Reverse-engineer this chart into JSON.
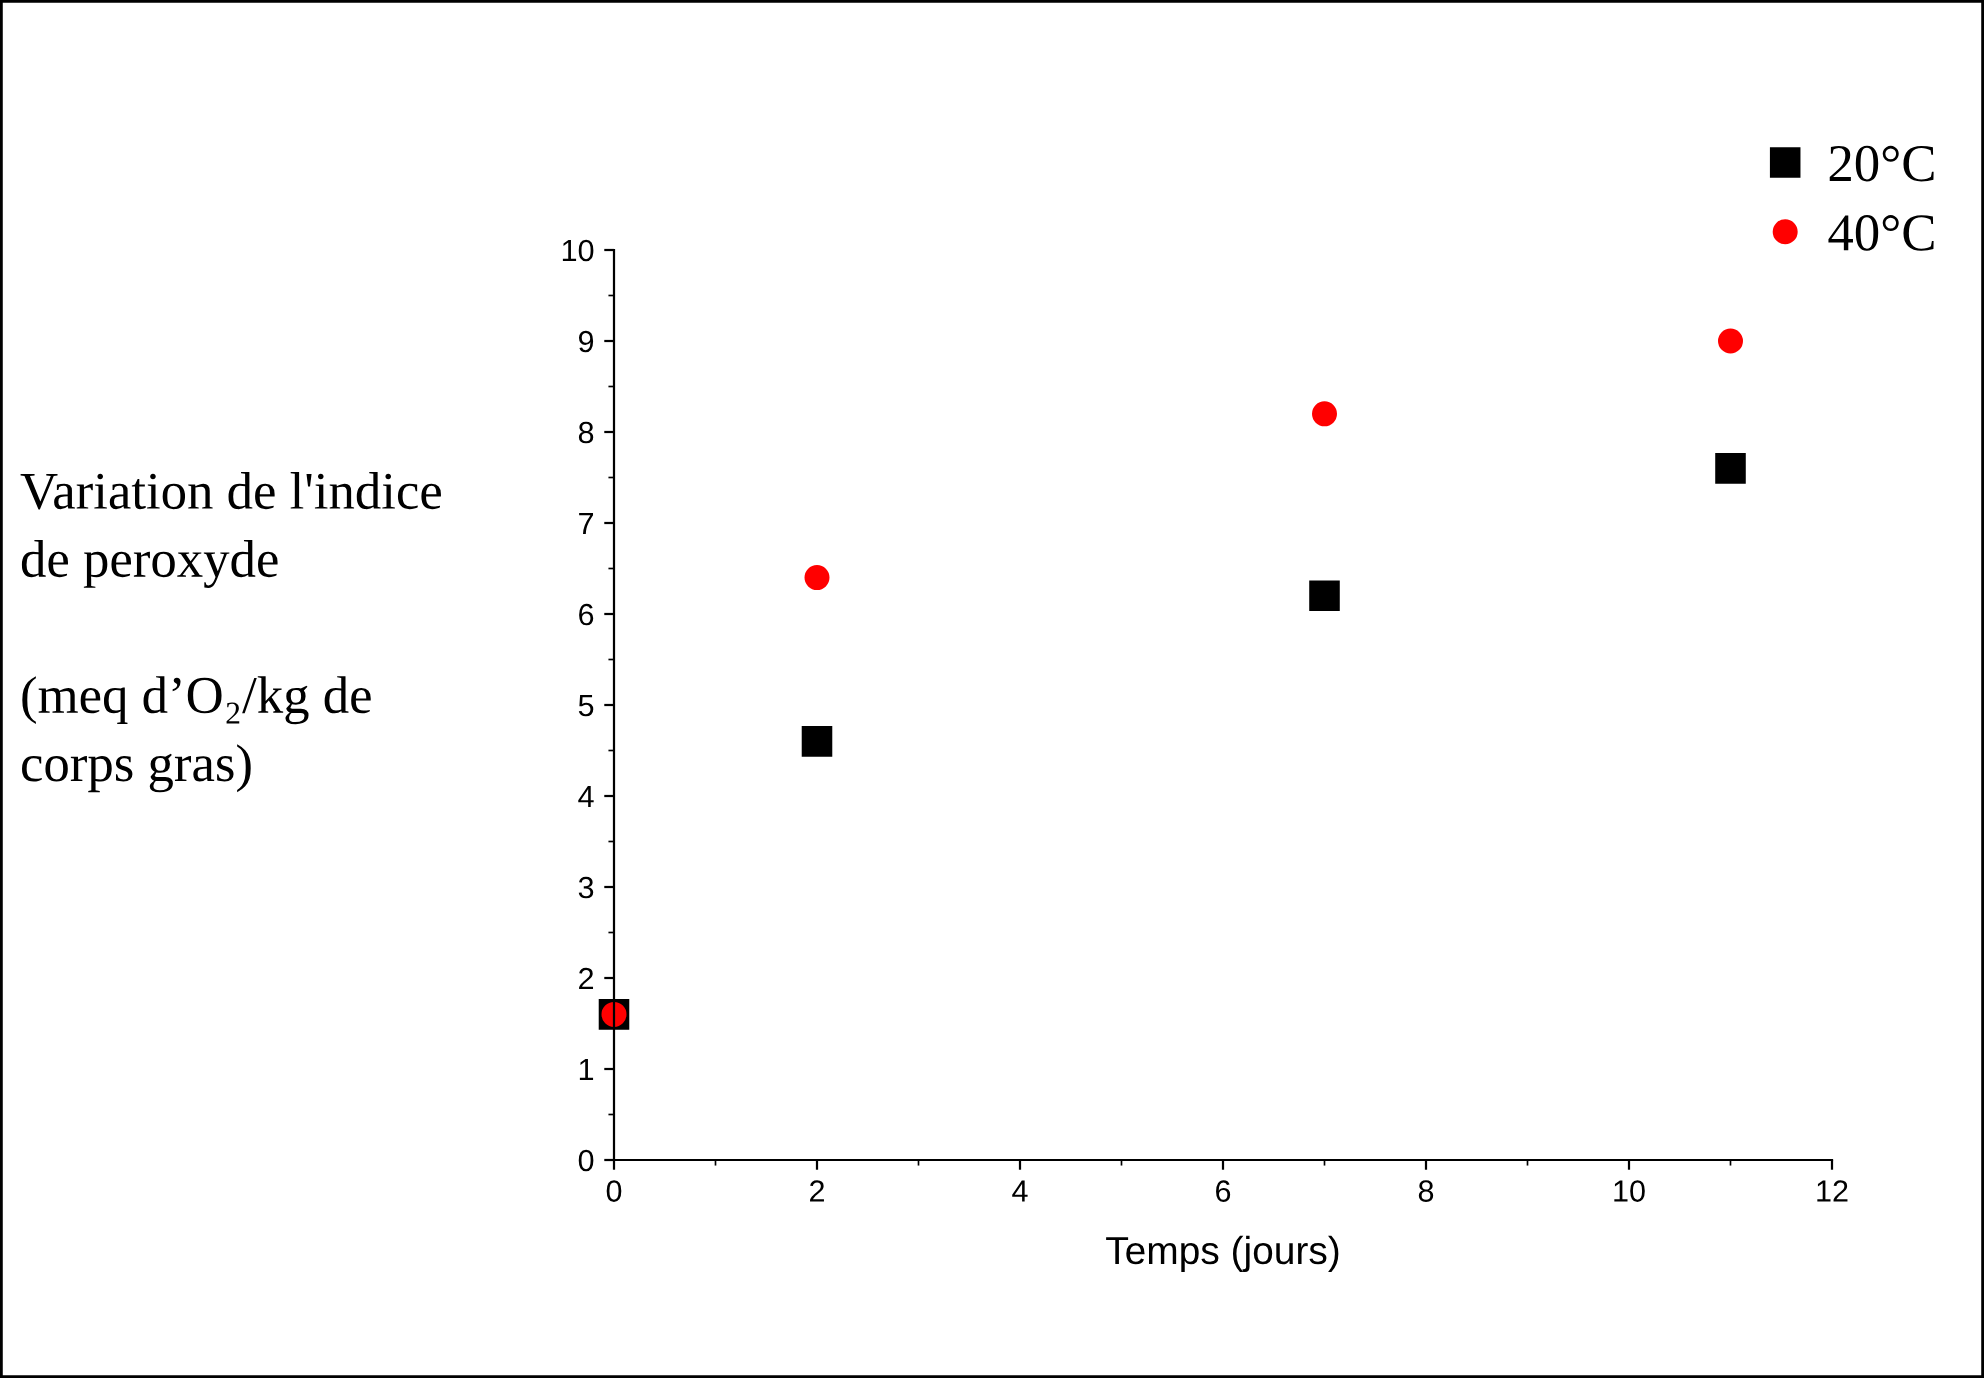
{
  "chart_data": {
    "type": "scatter",
    "xlabel": "Temps (jours)",
    "ylabel": "Variation de l'indice\nde peroxyde\n\n(meq d’O₂/kg de\ncorps gras)",
    "x": [
      0,
      2,
      7,
      11
    ],
    "series": [
      {
        "name": "20°C",
        "color": "#000000",
        "marker": "square",
        "values": [
          1.6,
          4.6,
          6.2,
          7.6
        ]
      },
      {
        "name": "40°C",
        "color": "#ff0000",
        "marker": "circle",
        "values": [
          1.6,
          6.4,
          8.2,
          9.0
        ]
      }
    ],
    "xlim": [
      0,
      12
    ],
    "xticks": [
      0,
      2,
      4,
      6,
      8,
      10,
      12
    ],
    "ylim": [
      0,
      10
    ],
    "yticks": [
      0,
      1,
      2,
      3,
      4,
      5,
      6,
      7,
      8,
      9,
      10
    ],
    "grid": false,
    "legend": "top right"
  }
}
